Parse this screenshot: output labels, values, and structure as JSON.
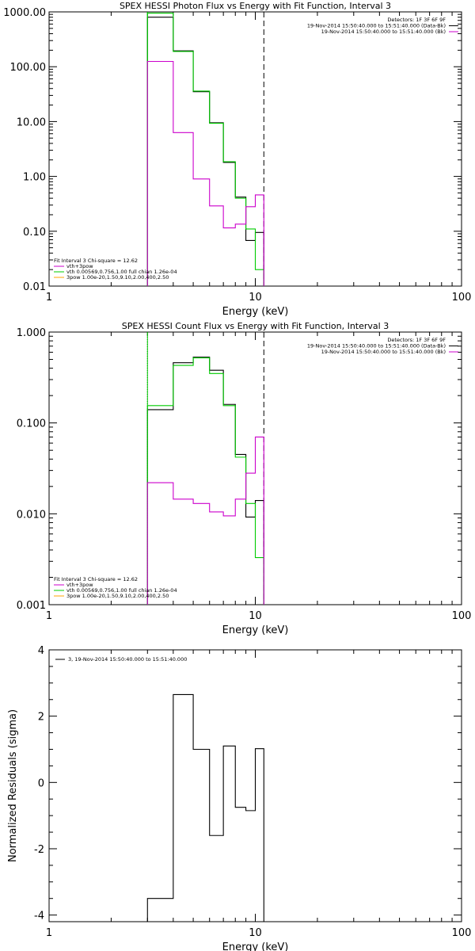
{
  "chart_data": [
    {
      "type": "line",
      "title": "SPEX HESSI Photon Flux vs Energy with Fit Function, Interval 3",
      "xlabel": "Energy (keV)",
      "ylabel": "",
      "xscale": "log",
      "yscale": "log",
      "xlim": [
        1,
        100
      ],
      "ylim": [
        0.01,
        1000
      ],
      "x_ticks": [
        "1",
        "10",
        "100"
      ],
      "y_ticks": [
        "0.01",
        "0.10",
        "1.00",
        "10.00",
        "100.00",
        "1000.00"
      ],
      "bin_edges": [
        3,
        4,
        5,
        6,
        7,
        8,
        9,
        10,
        11
      ],
      "series": [
        {
          "color": "#000000",
          "values": [
            800,
            195,
            35,
            9.5,
            1.8,
            0.42,
            0.068,
            0.095
          ]
        },
        {
          "color": "#00cc00",
          "values": [
            950,
            190,
            36,
            9.3,
            1.85,
            0.4,
            0.11,
            0.02
          ]
        },
        {
          "color": "#cc00cc",
          "values": [
            125,
            6.3,
            0.9,
            0.29,
            0.115,
            0.135,
            0.28,
            0.46
          ]
        }
      ],
      "vlines": [
        {
          "x": 3,
          "style": "solid",
          "color": "#00cc00"
        },
        {
          "x": 11,
          "style": "dashed",
          "color": "#000000"
        }
      ],
      "legend_tr": [
        {
          "text": "Detectors: 1F 3F 6F 9F",
          "color": ""
        },
        {
          "text": "19-Nov-2014 15:50:40.000 to 15:51:40.000 (Data-Bk)",
          "color": "#000000"
        },
        {
          "text": "19-Nov-2014 15:50:40.000 to 15:51:40.000 (Bk)",
          "color": "#cc00cc"
        }
      ],
      "legend_bl": [
        {
          "text": "Fit Interval 3   Chi-square = 12.62",
          "color": ""
        },
        {
          "text": "vth+3pow",
          "color": "#cc00cc"
        },
        {
          "text": "vth 0.00569,0.756,1.00  full chian 1.26e-04",
          "color": "#00cc00"
        },
        {
          "text": "3pow 1.00e-20,1.50,9.10,2.00,400,2.50",
          "color": "#ffa500"
        }
      ]
    },
    {
      "type": "line",
      "title": "SPEX HESSI Count Flux vs Energy with Fit Function, Interval 3",
      "xlabel": "Energy (keV)",
      "ylabel": "",
      "xscale": "log",
      "yscale": "log",
      "xlim": [
        1,
        100
      ],
      "ylim": [
        0.001,
        1
      ],
      "x_ticks": [
        "1",
        "10",
        "100"
      ],
      "y_ticks": [
        "0.001",
        "0.010",
        "0.100",
        "1.000"
      ],
      "bin_edges": [
        3,
        4,
        5,
        6,
        7,
        8,
        9,
        10,
        11
      ],
      "series": [
        {
          "color": "#000000",
          "values": [
            0.14,
            0.46,
            0.53,
            0.38,
            0.16,
            0.045,
            0.0092,
            0.014
          ]
        },
        {
          "color": "#00cc00",
          "values": [
            0.155,
            0.43,
            0.52,
            0.35,
            0.155,
            0.042,
            0.013,
            0.0033
          ]
        },
        {
          "color": "#cc00cc",
          "values": [
            0.022,
            0.0145,
            0.013,
            0.0105,
            0.0095,
            0.0145,
            0.028,
            0.07
          ]
        }
      ],
      "vlines": [
        {
          "x": 3,
          "style": "dotted",
          "color": "#000000"
        },
        {
          "x": 3,
          "style": "solid",
          "color": "#00cc00"
        },
        {
          "x": 11,
          "style": "dashed",
          "color": "#000000"
        }
      ],
      "legend_tr": [
        {
          "text": "Detectors: 1F 3F 6F 9F",
          "color": ""
        },
        {
          "text": "19-Nov-2014 15:50:40.000 to 15:51:40.000 (Data-Bk)",
          "color": "#000000"
        },
        {
          "text": "19-Nov-2014 15:50:40.000 to 15:51:40.000 (Bk)",
          "color": "#cc00cc"
        }
      ],
      "legend_bl": [
        {
          "text": "Fit Interval 3   Chi-square = 12.62",
          "color": ""
        },
        {
          "text": "vth+3pow",
          "color": "#cc00cc"
        },
        {
          "text": "vth 0.00569,0.756,1.00  full chian 1.26e-04",
          "color": "#00cc00"
        },
        {
          "text": "3pow 1.00e-20,1.50,9.10,2.00,400,2.50",
          "color": "#ffa500"
        }
      ]
    },
    {
      "type": "line",
      "title": "",
      "xlabel": "Energy (keV)",
      "ylabel": "Normalized Residuals (sigma)",
      "xscale": "log",
      "yscale": "linear",
      "xlim": [
        1,
        100
      ],
      "ylim": [
        -4.2,
        4
      ],
      "x_ticks": [
        "1",
        "10",
        "100"
      ],
      "y_ticks": [
        "-4",
        "-2",
        "0",
        "2",
        "4"
      ],
      "bin_edges": [
        3,
        4,
        5,
        6,
        7,
        8,
        9,
        10,
        11
      ],
      "series": [
        {
          "color": "#000000",
          "values": [
            -3.5,
            2.65,
            1.0,
            -1.6,
            1.1,
            -0.75,
            -0.85,
            1.02
          ]
        }
      ],
      "vlines": [],
      "legend_tr": [],
      "legend_bl": [],
      "legend_tl": [
        {
          "text": "3, 19-Nov-2014 15:50:40.000 to 15:51:40.000",
          "color": "#000000"
        }
      ]
    }
  ]
}
